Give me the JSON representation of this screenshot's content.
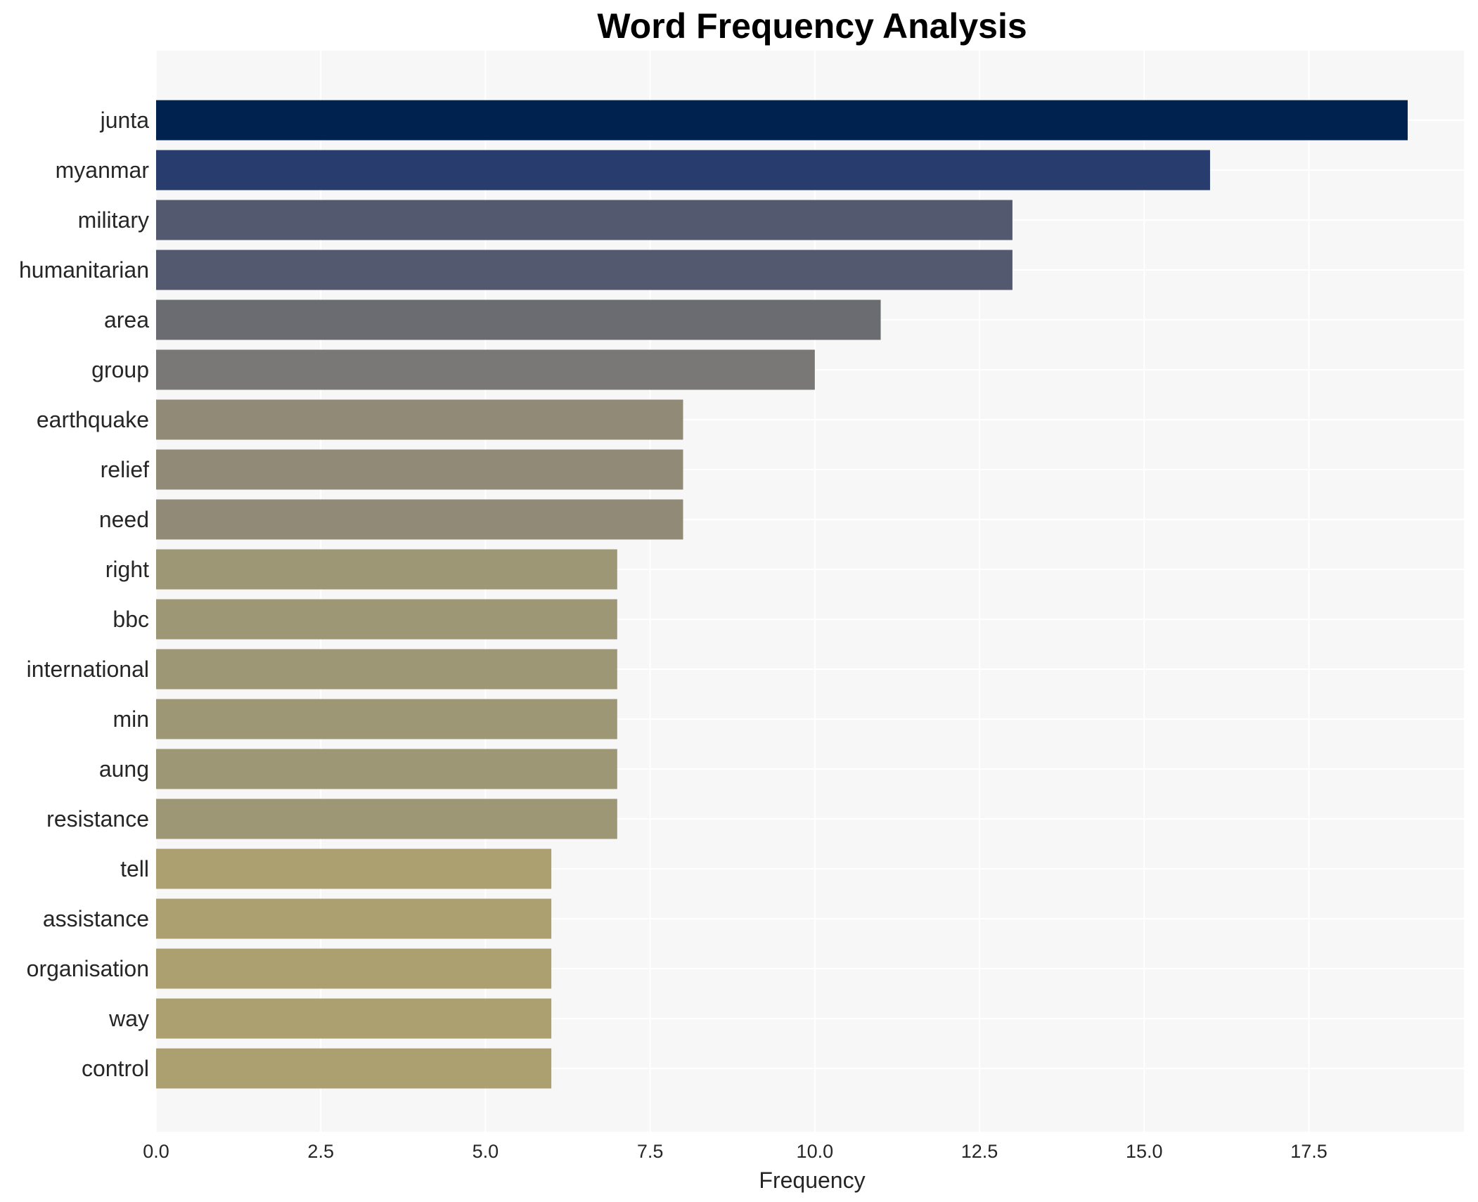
{
  "chart_data": {
    "type": "bar",
    "orientation": "horizontal",
    "title": "Word Frequency Analysis",
    "xlabel": "Frequency",
    "ylabel": "",
    "xlim": [
      0,
      20
    ],
    "grid": true,
    "x_ticks": [
      "0.0",
      "2.5",
      "5.0",
      "7.5",
      "10.0",
      "12.5",
      "15.0",
      "17.5"
    ],
    "x_tick_values": [
      0,
      2.5,
      5,
      7.5,
      10,
      12.5,
      15,
      17.5
    ],
    "categories": [
      "junta",
      "myanmar",
      "military",
      "humanitarian",
      "area",
      "group",
      "earthquake",
      "relief",
      "need",
      "right",
      "bbc",
      "international",
      "min",
      "aung",
      "resistance",
      "tell",
      "assistance",
      "organisation",
      "way",
      "control"
    ],
    "values": [
      19,
      16,
      13,
      13,
      11,
      10,
      8,
      8,
      8,
      7,
      7,
      7,
      7,
      7,
      7,
      6,
      6,
      6,
      6,
      6
    ],
    "colors": [
      "#00224e",
      "#283d6e",
      "#535a6f",
      "#535a6f",
      "#6b6c71",
      "#797877",
      "#908a77",
      "#908a77",
      "#908a77",
      "#9e9775",
      "#9e9775",
      "#9e9775",
      "#9e9775",
      "#9e9775",
      "#9e9775",
      "#aca071",
      "#aca071",
      "#aca071",
      "#aca071",
      "#aca071"
    ],
    "plot_background": "#f7f7f7",
    "grid_color": "#ffffff"
  }
}
